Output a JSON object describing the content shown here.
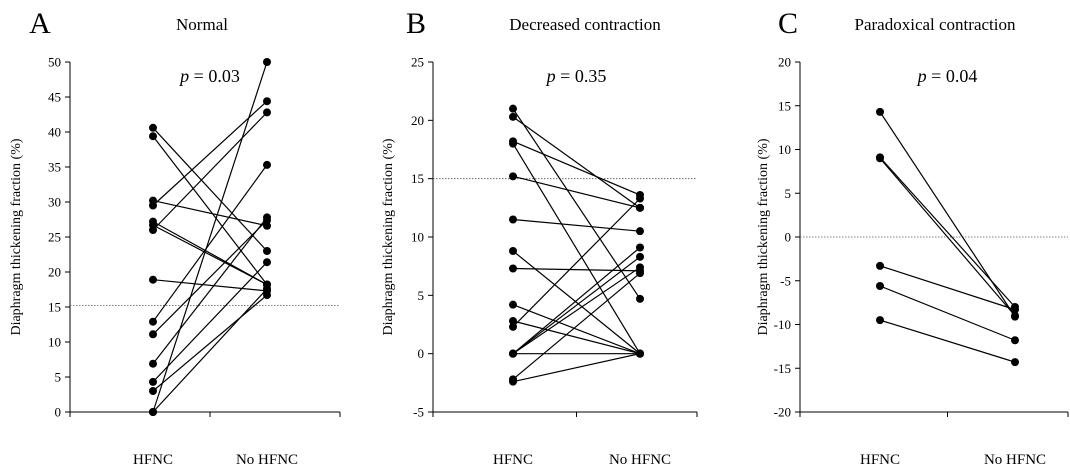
{
  "chart_data": [
    {
      "type": "line",
      "letter": "A",
      "title": "Normal",
      "ylabel": "Diaphragm thickening fraction (%)",
      "categories": [
        "HFNC",
        "No HFNC"
      ],
      "ylim": [
        0,
        50
      ],
      "yticks": [
        0,
        5,
        10,
        15,
        20,
        25,
        30,
        35,
        40,
        45,
        50
      ],
      "reference_line": 15.2,
      "p_symbol": "p",
      "p_value_text": " = 0.03",
      "pairs": [
        [
          40.6,
          23.0
        ],
        [
          39.4,
          18.2
        ],
        [
          30.2,
          26.6
        ],
        [
          29.5,
          44.4
        ],
        [
          27.2,
          18.2
        ],
        [
          26.7,
          18.2
        ],
        [
          26.0,
          42.8
        ],
        [
          18.9,
          17.3
        ],
        [
          12.9,
          35.3
        ],
        [
          11.1,
          27.4
        ],
        [
          6.9,
          27.8
        ],
        [
          4.3,
          21.4
        ],
        [
          3.0,
          16.7
        ],
        [
          0.0,
          50.0
        ],
        [
          0.0,
          17.6
        ]
      ]
    },
    {
      "type": "line",
      "letter": "B",
      "title": "Decreased contraction",
      "ylabel": "Diaphragm thickening fraction (%)",
      "categories": [
        "HFNC",
        "No HFNC"
      ],
      "ylim": [
        -5,
        25
      ],
      "yticks": [
        -5,
        0,
        5,
        10,
        15,
        20,
        25
      ],
      "reference_line": 15.0,
      "p_symbol": "p",
      "p_value_text": " = 0.35",
      "pairs": [
        [
          21.0,
          4.7
        ],
        [
          20.3,
          12.5
        ],
        [
          18.2,
          13.6
        ],
        [
          18.0,
          0.0
        ],
        [
          15.2,
          12.5
        ],
        [
          11.5,
          10.5
        ],
        [
          8.8,
          0.0
        ],
        [
          7.3,
          7.1
        ],
        [
          4.2,
          0.0
        ],
        [
          2.8,
          0.0
        ],
        [
          2.3,
          13.3
        ],
        [
          0.0,
          0.0
        ],
        [
          0.0,
          9.1
        ],
        [
          0.0,
          8.3
        ],
        [
          0.0,
          7.4
        ],
        [
          -2.2,
          6.9
        ],
        [
          -2.4,
          0.0
        ]
      ]
    },
    {
      "type": "line",
      "letter": "C",
      "title": "Paradoxical contraction",
      "ylabel": "Diaphragm thickening fraction (%)",
      "categories": [
        "HFNC",
        "No HFNC"
      ],
      "ylim": [
        -20,
        20
      ],
      "yticks": [
        -20,
        -15,
        -10,
        -5,
        0,
        5,
        10,
        15,
        20
      ],
      "reference_line": 0,
      "p_symbol": "p",
      "p_value_text": " = 0.04",
      "pairs": [
        [
          14.3,
          -9.1
        ],
        [
          9.1,
          -8.0
        ],
        [
          9.0,
          -9.0
        ],
        [
          -3.3,
          -8.3
        ],
        [
          -5.6,
          -11.8
        ],
        [
          -9.5,
          -14.3
        ]
      ]
    }
  ]
}
